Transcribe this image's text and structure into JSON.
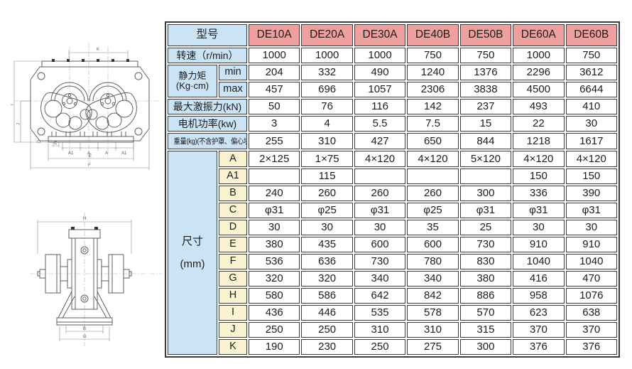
{
  "colors": {
    "header_pink": "#ef9f9d",
    "label_blue": "#cae4f6",
    "dim_cream": "#faf3d2",
    "grid_border": "#3c3c3c",
    "text": "#1c1c1c"
  },
  "table": {
    "model_header": {
      "label": "型号"
    },
    "models": [
      "DE10A",
      "DE20A",
      "DE30A",
      "DE40B",
      "DE50B",
      "DE60A",
      "DE60B"
    ],
    "speed": {
      "label": "转速（r/min）",
      "values": [
        "1000",
        "1000",
        "1000",
        "750",
        "750",
        "1000",
        "750"
      ]
    },
    "static_moment": {
      "label": "静力矩",
      "unit": "(Kg·cm)",
      "min": {
        "label": "min",
        "values": [
          "204",
          "332",
          "490",
          "1240",
          "1376",
          "2296",
          "3612"
        ]
      },
      "max": {
        "label": "max",
        "values": [
          "457",
          "696",
          "1057",
          "2306",
          "3838",
          "4500",
          "6644"
        ]
      }
    },
    "excitation_force": {
      "label": "最大激振力(kN)",
      "values": [
        "50",
        "76",
        "116",
        "142",
        "237",
        "493",
        "410"
      ]
    },
    "motor_power": {
      "label": "电机功率(kw)",
      "values": [
        "3",
        "4",
        "5.5",
        "7.5",
        "15",
        "22",
        "30"
      ]
    },
    "weight": {
      "label": "重量(kg)(不含护罩、偏心块)",
      "values": [
        "255",
        "310",
        "427",
        "650",
        "844",
        "1218",
        "1617"
      ]
    },
    "dimensions": {
      "label": "尺寸",
      "unit": "(mm)",
      "rows": [
        {
          "name": "A",
          "values": [
            "2×125",
            "1×75",
            "4×120",
            "4×120",
            "5×120",
            "4×120",
            "4×120"
          ]
        },
        {
          "name": "A1",
          "values": [
            "",
            "115",
            "",
            "",
            "",
            "150",
            "150"
          ]
        },
        {
          "name": "B",
          "values": [
            "240",
            "260",
            "260",
            "260",
            "300",
            "336",
            "390"
          ]
        },
        {
          "name": "C",
          "values": [
            "φ31",
            "φ25",
            "φ31",
            "φ25",
            "φ31",
            "φ31",
            "φ31"
          ]
        },
        {
          "name": "D",
          "values": [
            "30",
            "30",
            "30",
            "35",
            "25",
            "30",
            "30"
          ]
        },
        {
          "name": "E",
          "values": [
            "380",
            "435",
            "600",
            "600",
            "730",
            "910",
            "910"
          ]
        },
        {
          "name": "F",
          "values": [
            "536",
            "636",
            "730",
            "780",
            "830",
            "1040",
            "1040"
          ]
        },
        {
          "name": "G",
          "values": [
            "320",
            "320",
            "340",
            "340",
            "380",
            "416",
            "470"
          ]
        },
        {
          "name": "H",
          "values": [
            "580",
            "586",
            "642",
            "842",
            "886",
            "958",
            "1076"
          ]
        },
        {
          "name": "I",
          "values": [
            "436",
            "446",
            "535",
            "578",
            "570",
            "623",
            "638"
          ]
        },
        {
          "name": "J",
          "values": [
            "250",
            "250",
            "310",
            "310",
            "315",
            "370",
            "370"
          ]
        },
        {
          "name": "K",
          "values": [
            "190",
            "230",
            "250",
            "275",
            "300",
            "376",
            "376"
          ]
        }
      ]
    }
  },
  "drawings": {
    "top_view": {
      "labels": {
        "k": "K",
        "a1l": "A1",
        "al": "A",
        "ar": "A",
        "a1r": "A1",
        "e": "E",
        "f": "F",
        "c": "C",
        "d": "D",
        "i": "I",
        "j": "J"
      }
    },
    "front_view": {
      "labels": {
        "h": "H",
        "b": "B",
        "g": "G"
      }
    }
  }
}
